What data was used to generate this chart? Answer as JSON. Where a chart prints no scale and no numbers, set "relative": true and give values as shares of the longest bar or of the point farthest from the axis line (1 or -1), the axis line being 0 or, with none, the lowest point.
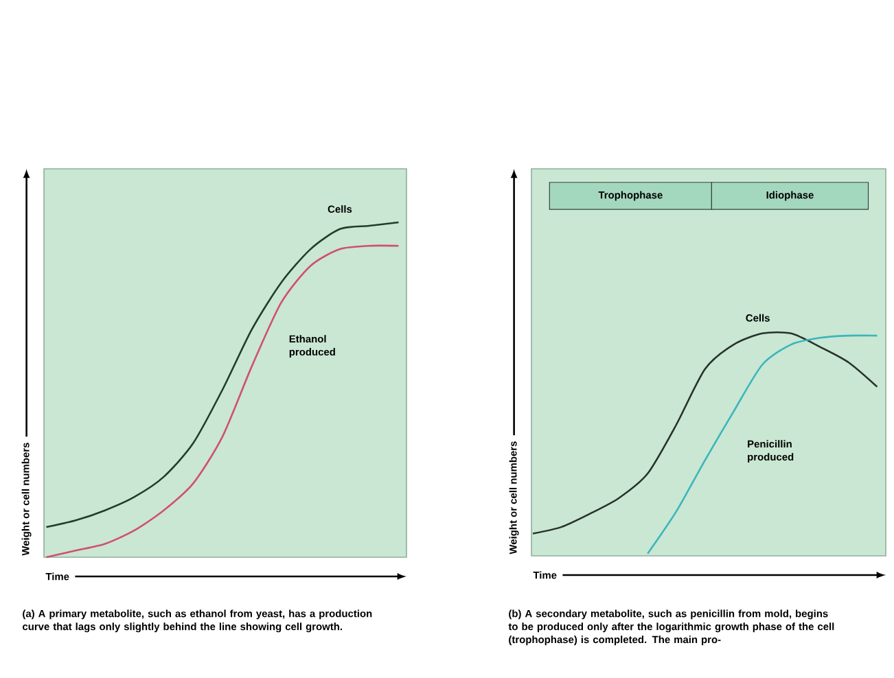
{
  "chart_data": [
    {
      "type": "line",
      "relative": true,
      "xlabel": "Time",
      "ylabel": "Weight or cell numbers",
      "categories": [
        null,
        null,
        null,
        null,
        null,
        null,
        null,
        null,
        null,
        null,
        null,
        null,
        null
      ],
      "series": [
        {
          "name": "Cells",
          "color": "#1e3f2c",
          "values": [
            0.09,
            0.11,
            0.14,
            0.18,
            0.24,
            0.34,
            0.5,
            0.68,
            0.82,
            0.92,
            0.98,
            0.99,
            1.0
          ]
        },
        {
          "name": "Ethanol produced",
          "color": "#d24f6e",
          "values": [
            0,
            0.02,
            0.04,
            0.08,
            0.14,
            0.22,
            0.36,
            0.57,
            0.76,
            0.87,
            0.92,
            0.93,
            0.93
          ]
        }
      ],
      "annotations": [
        "(a) A primary metabolite, such as ethanol from yeast, has a production curve that lags only slightly behind the line showing cell growth."
      ]
    },
    {
      "type": "line",
      "relative": true,
      "xlabel": "Time",
      "ylabel": "Weight or cell numbers",
      "categories": [
        null,
        null,
        null,
        null,
        null,
        null,
        null,
        null,
        null,
        null,
        null,
        null,
        null
      ],
      "series": [
        {
          "name": "Cells",
          "color": "#26332a",
          "values": [
            0.1,
            0.13,
            0.19,
            0.26,
            0.37,
            0.59,
            0.84,
            0.95,
            1.0,
            1.0,
            0.94,
            0.87,
            0.76
          ]
        },
        {
          "name": "Penicillin produced",
          "color": "#3bb5bd",
          "values": [
            null,
            null,
            null,
            null,
            0.01,
            0.2,
            0.43,
            0.65,
            0.86,
            0.95,
            0.98,
            0.99,
            0.99
          ]
        }
      ],
      "annotations": [
        "Trophophase",
        "Idiophase",
        "(b) A secondary metabolite, such as penicillin from mold, begins to be produced only after the logarithmic growth phase of the cell (trophophase) is completed. The main pro-"
      ]
    }
  ]
}
